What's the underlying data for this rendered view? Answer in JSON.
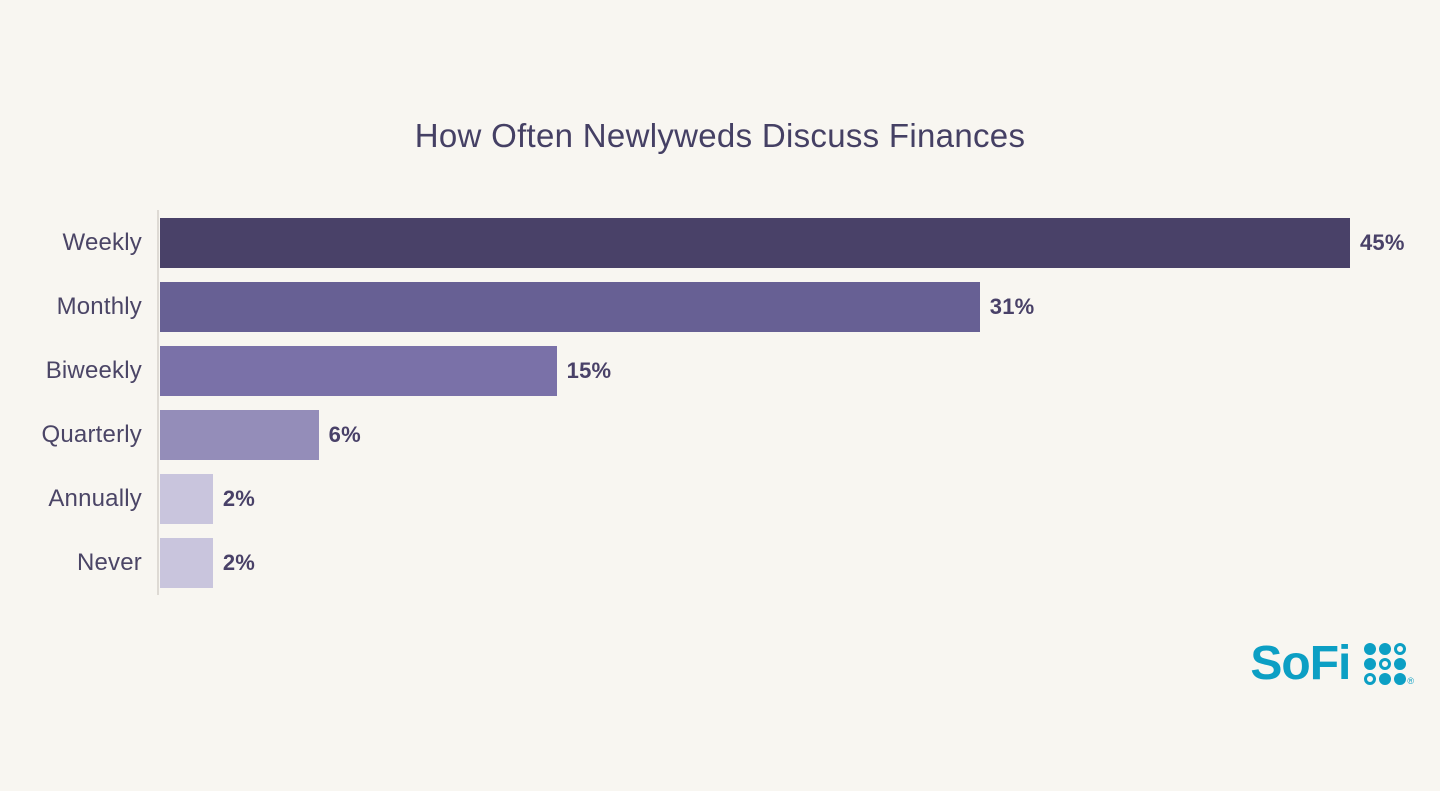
{
  "page": {
    "background": "#f8f6f1"
  },
  "chart_data": {
    "type": "bar",
    "orientation": "horizontal",
    "title": "How Often Newlyweds Discuss Finances",
    "categories": [
      "Weekly",
      "Monthly",
      "Biweekly",
      "Quarterly",
      "Annually",
      "Never"
    ],
    "values": [
      45,
      31,
      15,
      6,
      2,
      2
    ],
    "value_labels": [
      "45%",
      "31%",
      "15%",
      "6%",
      "2%",
      "2%"
    ],
    "xlim": [
      0,
      45
    ],
    "grid": false,
    "legend": null,
    "bar_colors": [
      "#494168",
      "#676094",
      "#7a71a8",
      "#948db9",
      "#c9c5dd",
      "#c9c5dd"
    ],
    "title_color": "#454064",
    "label_color": "#4b4566",
    "value_color": "#494168",
    "axis_color": "#dedad4"
  },
  "branding": {
    "logo_text": "SoFi",
    "logo_color": "#0c9fc4",
    "registered_mark": "®",
    "dot_pattern": [
      [
        "filled",
        "filled",
        "ring"
      ],
      [
        "filled",
        "ring",
        "filled"
      ],
      [
        "ring",
        "filled",
        "filled"
      ]
    ]
  }
}
